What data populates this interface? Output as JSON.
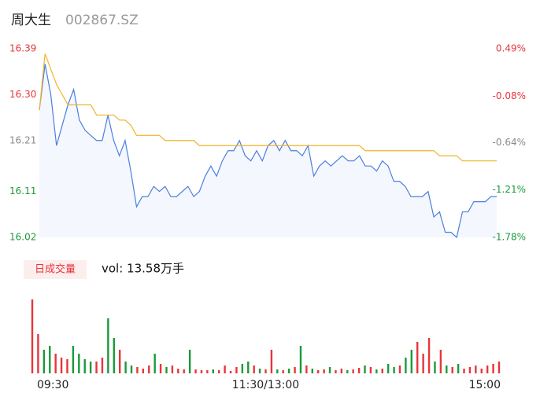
{
  "header": {
    "name": "周大生",
    "code": "002867.SZ"
  },
  "chart_data": [
    {
      "type": "line",
      "x": [
        0,
        3,
        6,
        9,
        12,
        15,
        18,
        21,
        24,
        27,
        30,
        33,
        36,
        39,
        42,
        45,
        48,
        51,
        54,
        57,
        60,
        63,
        66,
        69,
        72,
        75,
        78,
        81,
        84,
        87,
        90,
        93,
        96,
        99,
        102,
        105,
        108,
        111,
        114,
        117,
        120,
        123,
        126,
        129,
        132,
        135,
        138,
        141,
        144,
        147,
        150,
        153,
        156,
        159,
        162,
        165,
        168,
        171,
        174,
        177,
        180,
        183,
        186,
        189,
        192,
        195,
        198,
        201,
        204,
        207,
        210,
        213,
        216,
        219,
        222,
        225,
        228,
        231,
        234,
        237,
        240
      ],
      "xlim": [
        0,
        240
      ],
      "series": [
        {
          "color": "#4a7fe0",
          "values": [
            16.27,
            16.36,
            16.3,
            16.2,
            16.24,
            16.28,
            16.31,
            16.25,
            16.23,
            16.22,
            16.21,
            16.21,
            16.26,
            16.21,
            16.18,
            16.21,
            16.15,
            16.08,
            16.1,
            16.1,
            16.12,
            16.11,
            16.12,
            16.1,
            16.1,
            16.11,
            16.12,
            16.1,
            16.11,
            16.14,
            16.16,
            16.14,
            16.17,
            16.19,
            16.19,
            16.21,
            16.18,
            16.17,
            16.19,
            16.17,
            16.2,
            16.21,
            16.19,
            16.21,
            16.19,
            16.19,
            16.18,
            16.2,
            16.14,
            16.16,
            16.17,
            16.16,
            16.17,
            16.18,
            16.17,
            16.17,
            16.18,
            16.16,
            16.16,
            16.15,
            16.17,
            16.16,
            16.13,
            16.13,
            16.12,
            16.1,
            16.1,
            16.1,
            16.11,
            16.06,
            16.07,
            16.03,
            16.03,
            16.02,
            16.07,
            16.07,
            16.09,
            16.09,
            16.09,
            16.1,
            16.1
          ]
        },
        {
          "color": "#f0b429",
          "values": [
            16.27,
            16.38,
            16.35,
            16.32,
            16.3,
            16.28,
            16.28,
            16.28,
            16.28,
            16.28,
            16.26,
            16.26,
            16.26,
            16.26,
            16.25,
            16.25,
            16.24,
            16.22,
            16.22,
            16.22,
            16.22,
            16.22,
            16.21,
            16.21,
            16.21,
            16.21,
            16.21,
            16.21,
            16.2,
            16.2,
            16.2,
            16.2,
            16.2,
            16.2,
            16.2,
            16.2,
            16.2,
            16.2,
            16.2,
            16.2,
            16.2,
            16.2,
            16.2,
            16.2,
            16.2,
            16.2,
            16.2,
            16.2,
            16.2,
            16.2,
            16.2,
            16.2,
            16.2,
            16.2,
            16.2,
            16.2,
            16.2,
            16.19,
            16.19,
            16.19,
            16.19,
            16.19,
            16.19,
            16.19,
            16.19,
            16.19,
            16.19,
            16.19,
            16.19,
            16.19,
            16.18,
            16.18,
            16.18,
            16.18,
            16.17,
            16.17,
            16.17,
            16.17,
            16.17,
            16.17,
            16.17
          ]
        }
      ],
      "area_color": "#f4f7fd",
      "ylim": [
        16.02,
        16.39
      ],
      "yticks": [
        16.39,
        {
          "value": 16.3,
          "label": "16.30"
        },
        16.21,
        16.11,
        16.02
      ],
      "y2lim": [
        -1.78,
        0.49
      ],
      "y2ticks": [
        {
          "value": 0.49,
          "label": "0.49%"
        },
        {
          "value": -0.08,
          "label": "-0.08%"
        },
        {
          "value": -0.64,
          "label": "-0.64%"
        },
        {
          "value": -1.21,
          "label": "-1.21%"
        },
        {
          "value": -1.78,
          "label": "-1.78%"
        }
      ],
      "tick_colors": [
        "#e8353a",
        "#e8353a",
        "#8a8a8a",
        "#1a9a3a",
        "#1a9a3a"
      ]
    },
    {
      "type": "bar",
      "label": "日成交量",
      "vol_text": "vol: 13.58万手",
      "x": [
        0,
        3,
        6,
        9,
        12,
        15,
        18,
        21,
        24,
        27,
        30,
        33,
        36,
        39,
        42,
        45,
        48,
        51,
        54,
        57,
        60,
        63,
        66,
        69,
        72,
        75,
        78,
        81,
        84,
        87,
        90,
        93,
        96,
        99,
        102,
        105,
        108,
        111,
        114,
        117,
        120,
        123,
        126,
        129,
        132,
        135,
        138,
        141,
        144,
        147,
        150,
        153,
        156,
        159,
        162,
        165,
        168,
        171,
        174,
        177,
        180,
        183,
        186,
        189,
        192,
        195,
        198,
        201,
        204,
        207,
        210,
        213,
        216,
        219,
        222,
        225,
        228,
        231,
        234,
        237,
        240
      ],
      "xlim": [
        0,
        240
      ],
      "values": [
        94,
        50,
        30,
        35,
        25,
        20,
        18,
        35,
        25,
        18,
        15,
        15,
        20,
        70,
        45,
        30,
        15,
        10,
        8,
        6,
        10,
        25,
        12,
        8,
        10,
        6,
        5,
        30,
        5,
        4,
        4,
        5,
        4,
        10,
        3,
        8,
        12,
        15,
        10,
        6,
        5,
        30,
        5,
        4,
        6,
        8,
        35,
        10,
        6,
        4,
        5,
        8,
        4,
        6,
        4,
        5,
        7,
        10,
        8,
        5,
        6,
        12,
        8,
        10,
        20,
        30,
        40,
        25,
        45,
        15,
        30,
        10,
        8,
        12,
        6,
        8,
        10,
        6,
        10,
        12,
        15
      ],
      "ylim": [
        0,
        100
      ],
      "up_color": "#e8353a",
      "down_color": "#1a9a3a",
      "xticks": [
        {
          "value": 0,
          "label": "09:30"
        },
        {
          "value": 120,
          "label": "11:30/13:00"
        },
        {
          "value": 240,
          "label": "15:00"
        }
      ]
    }
  ]
}
